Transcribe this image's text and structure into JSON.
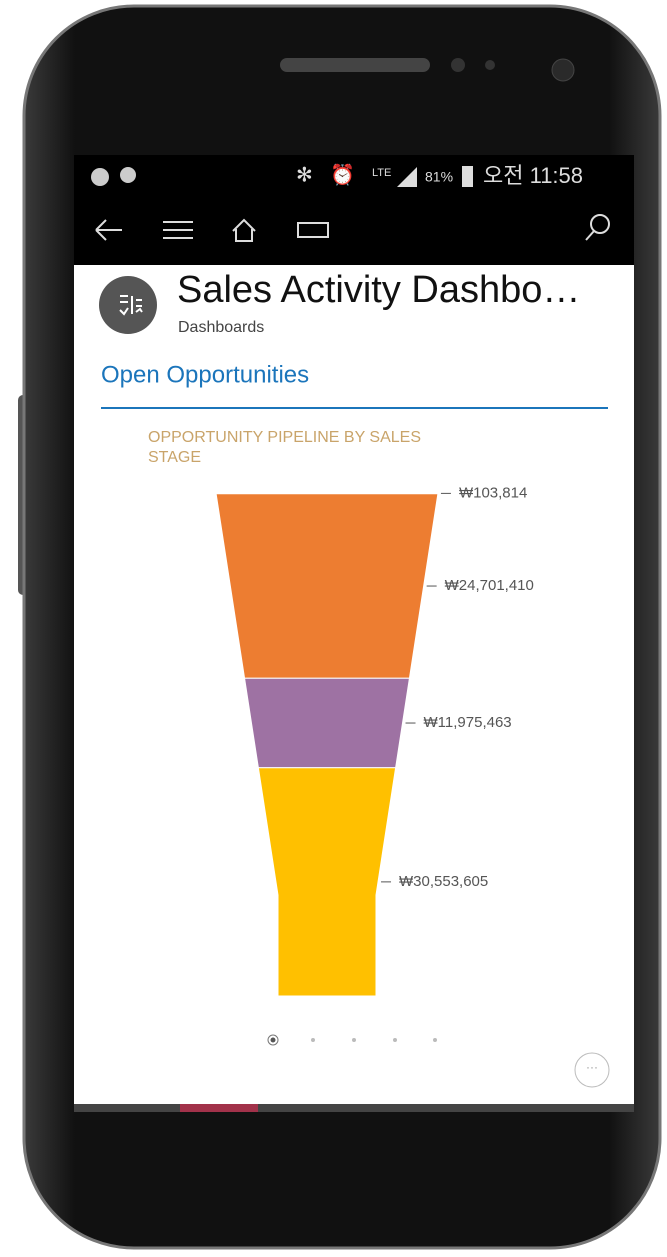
{
  "status_bar": {
    "network": "LTE",
    "battery": "81%",
    "time": "오전 11:58"
  },
  "header": {
    "title": "Sales Activity Dashbo…",
    "subtitle": "Dashboards"
  },
  "section_title": "Open Opportunities",
  "chart_data": {
    "type": "funnel",
    "title": "OPPORTUNITY PIPELINE BY SALES STAGE",
    "values": [
      103814,
      24701410,
      11975463,
      30553605
    ],
    "value_labels": [
      "₩103,814",
      "₩24,701,410",
      "₩11,975,463",
      "₩30,553,605"
    ],
    "colors": [
      "#ed7d31",
      "#ed7d31",
      "#9e72a3",
      "#ffc000"
    ]
  }
}
